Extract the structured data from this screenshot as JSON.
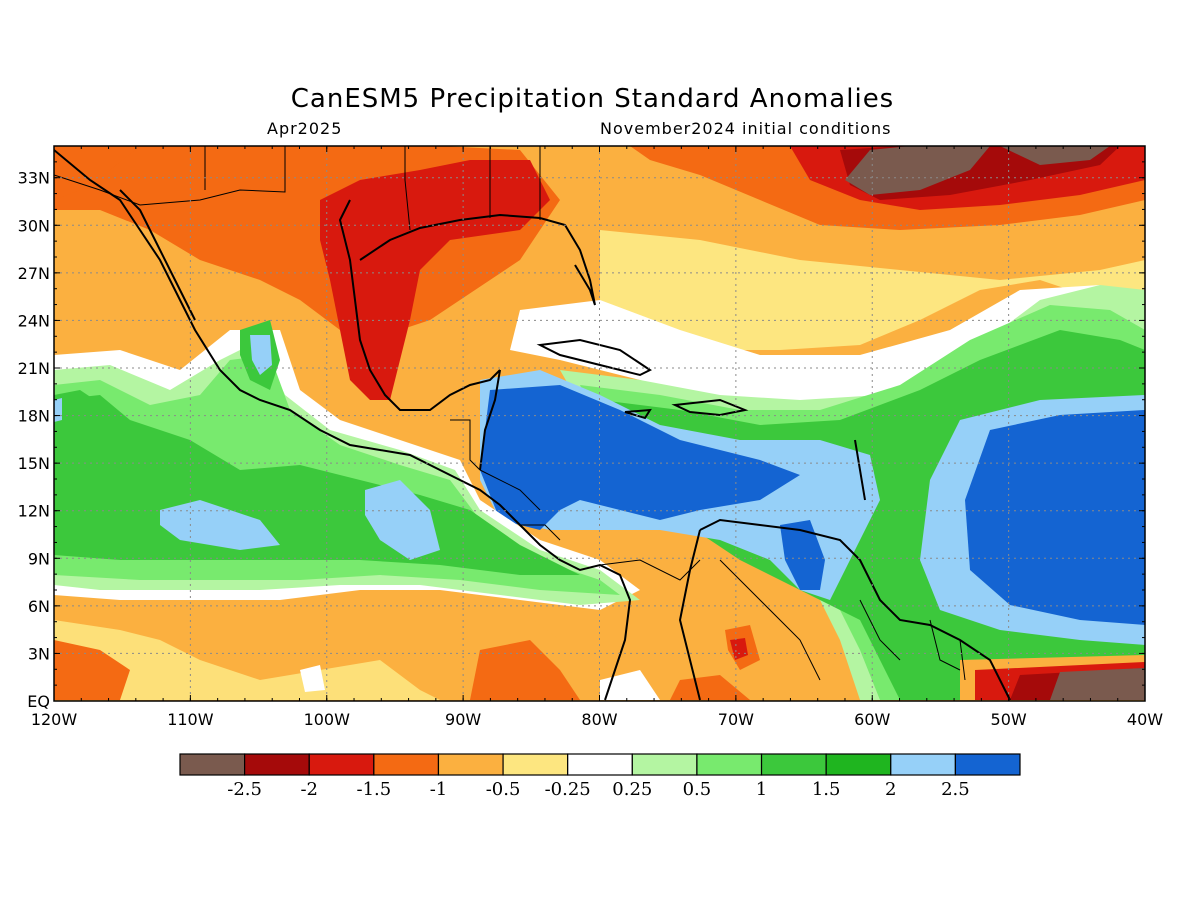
{
  "title": "CanESM5 Precipitation Standard Anomalies",
  "subtitle_left": "Apr2025",
  "subtitle_right": "November2024 initial conditions",
  "lat_labels": [
    "33N",
    "30N",
    "27N",
    "24N",
    "21N",
    "18N",
    "15N",
    "12N",
    "9N",
    "6N",
    "3N",
    "EQ"
  ],
  "lat_values": [
    33,
    30,
    27,
    24,
    21,
    18,
    15,
    12,
    9,
    6,
    3,
    0
  ],
  "lon_labels": [
    "120W",
    "110W",
    "100W",
    "90W",
    "80W",
    "70W",
    "60W",
    "50W",
    "40W"
  ],
  "lon_values": [
    -120,
    -110,
    -100,
    -90,
    -80,
    -70,
    -60,
    -50,
    -40
  ],
  "extent": {
    "lon_min": -120,
    "lon_max": -40,
    "lat_min": 0,
    "lat_max": 35
  },
  "colorbar": {
    "colors": [
      "#7a5a4e",
      "#a50a0a",
      "#d8190e",
      "#f46a13",
      "#fbb040",
      "#fde680",
      "#ffffff",
      "#b4f5a2",
      "#78ea6e",
      "#3cc83c",
      "#1fb51f",
      "#96d0f8",
      "#1464d2"
    ],
    "labels": [
      "-2.5",
      "-2",
      "-1.5",
      "-1",
      "-0.5",
      "-0.25",
      "0.25",
      "0.5",
      "1",
      "1.5",
      "2",
      "2.5"
    ]
  }
}
